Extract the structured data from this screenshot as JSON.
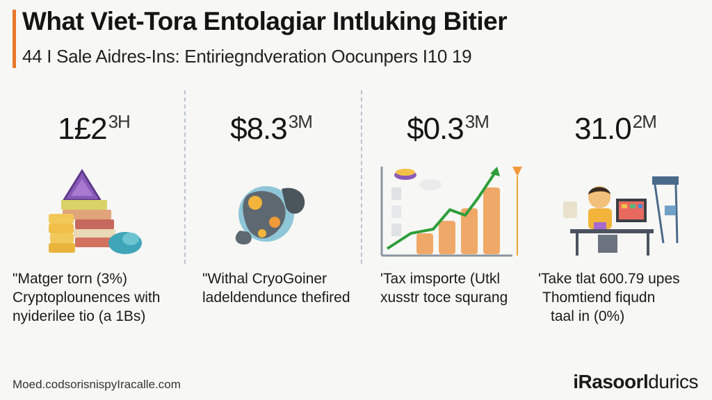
{
  "header": {
    "title": "What Viet-Tora Entolagiar Intluking Bitier",
    "subtitle": "44 I Sale Aidres-Ins: Entiriegndveration Oocunpers I10 19"
  },
  "colors": {
    "accent": "#e8792b",
    "divider": "#b9c3cf",
    "chart_line": "#2e9e3a",
    "coin": "#f0a868"
  },
  "stats": [
    {
      "value": "1£2",
      "suffix": "3H",
      "illustration": "books-and-triangle-icon",
      "caption": [
        "\"Matger torn (3%)",
        "Cryptoplounences with",
        "nyiderilee tio (a 1Bs)"
      ]
    },
    {
      "value": "$8.3",
      "suffix": "3M",
      "illustration": "globe-splash-icon",
      "caption": [
        "\"Withal CryoGoiner",
        "ladeldendunce thefired"
      ]
    },
    {
      "value": "$0.3",
      "suffix": "3M",
      "illustration": "growth-chart-coins-icon",
      "caption": [
        "'Tax imsporte (Utkl",
        "xusstr toce squrang"
      ]
    },
    {
      "value": "31.0",
      "suffix": "2M",
      "illustration": "person-at-desk-icon",
      "caption": [
        "'Take tlat 600.79 upes",
        "Thomtiend fiqudn",
        "taal in (0%)"
      ]
    }
  ],
  "footer": {
    "source": "Moed.codsorisnispyIracalle.com",
    "brand_bold": "iRasoorl",
    "brand_rest": "durics"
  }
}
